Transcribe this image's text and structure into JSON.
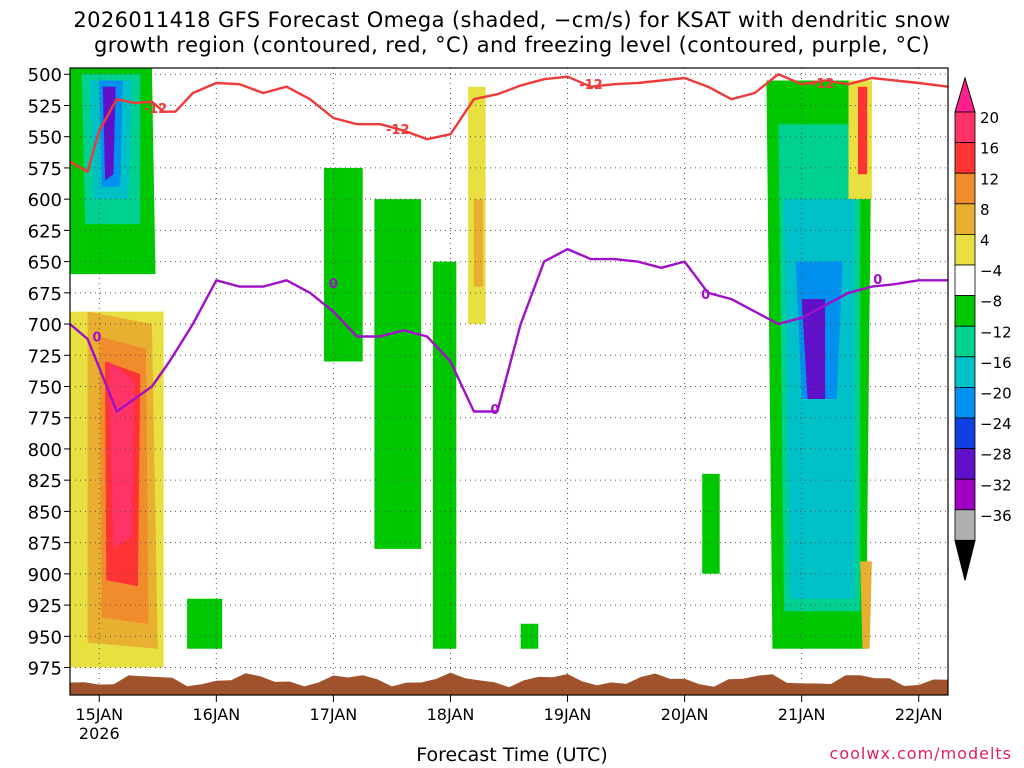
{
  "title_line1": "2026011418 GFS Forecast Omega (shaded, −cm/s) for KSAT with dendritic snow",
  "title_line2": "growth region (contoured, red, °C) and freezing level (contoured, purple, °C)",
  "credit": "coolwx.com/modelts",
  "chart_data": {
    "type": "heatmap",
    "xlabel": "Forecast Time (UTC)",
    "ylabel": "",
    "x_ticks": [
      {
        "day": 0,
        "label": "15JAN",
        "sublabel": "2026"
      },
      {
        "day": 1,
        "label": "16JAN"
      },
      {
        "day": 2,
        "label": "17JAN"
      },
      {
        "day": 3,
        "label": "18JAN"
      },
      {
        "day": 4,
        "label": "19JAN"
      },
      {
        "day": 5,
        "label": "20JAN"
      },
      {
        "day": 6,
        "label": "21JAN"
      },
      {
        "day": 7,
        "label": "22JAN"
      }
    ],
    "xlim_days": [
      -0.25,
      7.25
    ],
    "y_ticks": [
      500,
      525,
      550,
      575,
      600,
      625,
      650,
      675,
      700,
      725,
      750,
      775,
      800,
      825,
      850,
      875,
      900,
      925,
      950,
      975
    ],
    "ylim_hpa": [
      495,
      997
    ],
    "grid": true,
    "colorbar": {
      "labels": [
        "20",
        "16",
        "12",
        "8",
        "4",
        "−4",
        "−8",
        "−12",
        "−16",
        "−20",
        "−24",
        "−28",
        "−32",
        "−36"
      ],
      "colors": [
        "#ff3366",
        "#ff3333",
        "#f08c2c",
        "#e8b030",
        "#e8e040",
        "#ffffff",
        "#00c800",
        "#00d090",
        "#00c0c8",
        "#0090f0",
        "#1040e0",
        "#6010c8",
        "#a000c0",
        "#b0b0b0"
      ],
      "arrow_top_color": "#ff1f8f",
      "arrow_bottom_color": "#000000"
    },
    "omega_regions": [
      {
        "category": "4",
        "points": [
          [
            -0.25,
            680
          ],
          [
            0.55,
            682
          ],
          [
            0.55,
            975
          ],
          [
            -0.25,
            975
          ]
        ]
      },
      {
        "category": "8",
        "points": [
          [
            -0.1,
            690
          ],
          [
            0.45,
            700
          ],
          [
            0.5,
            960
          ],
          [
            -0.1,
            955
          ]
        ]
      },
      {
        "category": "12",
        "points": [
          [
            0.0,
            710
          ],
          [
            0.4,
            720
          ],
          [
            0.42,
            940
          ],
          [
            0.02,
            935
          ]
        ]
      },
      {
        "category": "16",
        "points": [
          [
            0.05,
            730
          ],
          [
            0.35,
            740
          ],
          [
            0.33,
            910
          ],
          [
            0.06,
            905
          ]
        ]
      },
      {
        "category": "20",
        "points": [
          [
            0.08,
            730
          ],
          [
            0.3,
            745
          ],
          [
            0.28,
            870
          ],
          [
            0.12,
            880
          ]
        ]
      },
      {
        "category": "-4",
        "points": [
          [
            -0.25,
            505
          ],
          [
            0.55,
            505
          ],
          [
            0.55,
            690
          ],
          [
            -0.25,
            690
          ]
        ]
      },
      {
        "category": "-8",
        "points": [
          [
            -0.25,
            495
          ],
          [
            0.45,
            495
          ],
          [
            0.48,
            660
          ],
          [
            -0.25,
            660
          ]
        ]
      },
      {
        "category": "-12",
        "points": [
          [
            -0.15,
            500
          ],
          [
            0.35,
            500
          ],
          [
            0.35,
            620
          ],
          [
            -0.12,
            620
          ]
        ]
      },
      {
        "category": "-16",
        "points": [
          [
            -0.08,
            505
          ],
          [
            0.28,
            505
          ],
          [
            0.25,
            600
          ],
          [
            -0.05,
            600
          ]
        ]
      },
      {
        "category": "-20",
        "points": [
          [
            0.0,
            505
          ],
          [
            0.2,
            505
          ],
          [
            0.18,
            590
          ],
          [
            0.02,
            590
          ]
        ]
      },
      {
        "category": "-28",
        "points": [
          [
            0.03,
            510
          ],
          [
            0.14,
            510
          ],
          [
            0.12,
            580
          ],
          [
            0.05,
            585
          ]
        ]
      },
      {
        "category": "-8",
        "points": [
          [
            1.92,
            575
          ],
          [
            2.25,
            575
          ],
          [
            2.25,
            730
          ],
          [
            1.92,
            730
          ]
        ]
      },
      {
        "category": "-8",
        "points": [
          [
            2.35,
            600
          ],
          [
            2.75,
            600
          ],
          [
            2.75,
            880
          ],
          [
            2.35,
            880
          ]
        ]
      },
      {
        "category": "-8",
        "points": [
          [
            2.85,
            650
          ],
          [
            3.05,
            650
          ],
          [
            3.05,
            960
          ],
          [
            2.85,
            960
          ]
        ]
      },
      {
        "category": "4",
        "points": [
          [
            3.15,
            510
          ],
          [
            3.3,
            510
          ],
          [
            3.3,
            700
          ],
          [
            3.15,
            700
          ]
        ]
      },
      {
        "category": "8",
        "points": [
          [
            3.2,
            600
          ],
          [
            3.28,
            600
          ],
          [
            3.28,
            670
          ],
          [
            3.2,
            670
          ]
        ]
      },
      {
        "category": "-8",
        "points": [
          [
            5.15,
            820
          ],
          [
            5.3,
            820
          ],
          [
            5.3,
            900
          ],
          [
            5.15,
            900
          ]
        ]
      },
      {
        "category": "-8",
        "points": [
          [
            5.7,
            505
          ],
          [
            6.6,
            505
          ],
          [
            6.55,
            960
          ],
          [
            5.75,
            960
          ]
        ]
      },
      {
        "category": "-12",
        "points": [
          [
            5.8,
            540
          ],
          [
            6.5,
            540
          ],
          [
            6.5,
            930
          ],
          [
            5.85,
            930
          ]
        ]
      },
      {
        "category": "-16",
        "points": [
          [
            5.85,
            600
          ],
          [
            6.45,
            600
          ],
          [
            6.45,
            920
          ],
          [
            5.9,
            920
          ]
        ]
      },
      {
        "category": "-20",
        "points": [
          [
            5.95,
            650
          ],
          [
            6.35,
            650
          ],
          [
            6.3,
            760
          ],
          [
            6.0,
            760
          ]
        ]
      },
      {
        "category": "-28",
        "points": [
          [
            6.0,
            680
          ],
          [
            6.2,
            680
          ],
          [
            6.2,
            760
          ],
          [
            6.05,
            760
          ]
        ]
      },
      {
        "category": "4",
        "points": [
          [
            6.4,
            505
          ],
          [
            6.6,
            505
          ],
          [
            6.6,
            600
          ],
          [
            6.4,
            600
          ]
        ]
      },
      {
        "category": "16",
        "points": [
          [
            6.48,
            510
          ],
          [
            6.56,
            510
          ],
          [
            6.56,
            580
          ],
          [
            6.48,
            580
          ]
        ]
      },
      {
        "category": "8",
        "points": [
          [
            6.5,
            890
          ],
          [
            6.6,
            890
          ],
          [
            6.58,
            960
          ],
          [
            6.52,
            960
          ]
        ]
      },
      {
        "category": "-8",
        "points": [
          [
            0.75,
            920
          ],
          [
            1.05,
            920
          ],
          [
            1.05,
            960
          ],
          [
            0.75,
            960
          ]
        ]
      },
      {
        "category": "-8",
        "points": [
          [
            3.6,
            940
          ],
          [
            3.75,
            940
          ],
          [
            3.75,
            960
          ],
          [
            3.6,
            960
          ]
        ]
      }
    ],
    "series": [
      {
        "name": "-12",
        "color": "#ee3a3a",
        "x": [
          -0.25,
          -0.1,
          0.0,
          0.15,
          0.3,
          0.45,
          0.55,
          0.65,
          0.8,
          1.0,
          1.2,
          1.4,
          1.6,
          1.8,
          2.0,
          2.2,
          2.4,
          2.6,
          2.8,
          3.0,
          3.2,
          3.4,
          3.6,
          3.8,
          4.0,
          4.2,
          4.4,
          4.6,
          4.8,
          5.0,
          5.2,
          5.4,
          5.6,
          5.8,
          6.0,
          6.2,
          6.4,
          6.6,
          6.8,
          7.0,
          7.25
        ],
        "y": [
          570,
          578,
          545,
          520,
          523,
          522,
          530,
          530,
          515,
          507,
          508,
          515,
          510,
          520,
          535,
          540,
          540,
          545,
          552,
          548,
          520,
          516,
          509,
          504,
          502,
          510,
          508,
          507,
          505,
          503,
          510,
          520,
          515,
          500,
          508,
          505,
          508,
          503,
          505,
          507,
          510
        ]
      },
      {
        "name": "0",
        "color": "#a010c8",
        "x": [
          -0.25,
          -0.1,
          0.0,
          0.15,
          0.3,
          0.45,
          0.6,
          0.8,
          1.0,
          1.2,
          1.4,
          1.6,
          1.8,
          2.0,
          2.2,
          2.4,
          2.6,
          2.8,
          3.0,
          3.2,
          3.4,
          3.6,
          3.8,
          4.0,
          4.2,
          4.4,
          4.6,
          4.8,
          5.0,
          5.2,
          5.4,
          5.6,
          5.8,
          6.0,
          6.2,
          6.4,
          6.6,
          6.8,
          7.0,
          7.25
        ],
        "y": [
          700,
          712,
          735,
          770,
          760,
          750,
          730,
          700,
          665,
          670,
          670,
          665,
          675,
          690,
          710,
          710,
          705,
          710,
          730,
          770,
          770,
          700,
          650,
          640,
          648,
          648,
          650,
          655,
          650,
          675,
          680,
          690,
          700,
          695,
          685,
          675,
          670,
          668,
          665,
          665
        ]
      }
    ],
    "contour_labels": [
      {
        "text": "-12",
        "day": 0.48,
        "hpa": 527,
        "series": "-12"
      },
      {
        "text": "-12",
        "day": 2.55,
        "hpa": 544,
        "series": "-12"
      },
      {
        "text": "-12",
        "day": 4.2,
        "hpa": 508,
        "series": "-12"
      },
      {
        "text": "-12",
        "day": 6.18,
        "hpa": 507,
        "series": "-12"
      },
      {
        "text": "0",
        "day": -0.02,
        "hpa": 710,
        "series": "0"
      },
      {
        "text": "0",
        "day": 2.0,
        "hpa": 667,
        "series": "0"
      },
      {
        "text": "0",
        "day": 3.38,
        "hpa": 768,
        "series": "0"
      },
      {
        "text": "0",
        "day": 5.18,
        "hpa": 676,
        "series": "0"
      },
      {
        "text": "0",
        "day": 6.65,
        "hpa": 664,
        "series": "0"
      }
    ],
    "terrain_color": "#a0522d"
  }
}
